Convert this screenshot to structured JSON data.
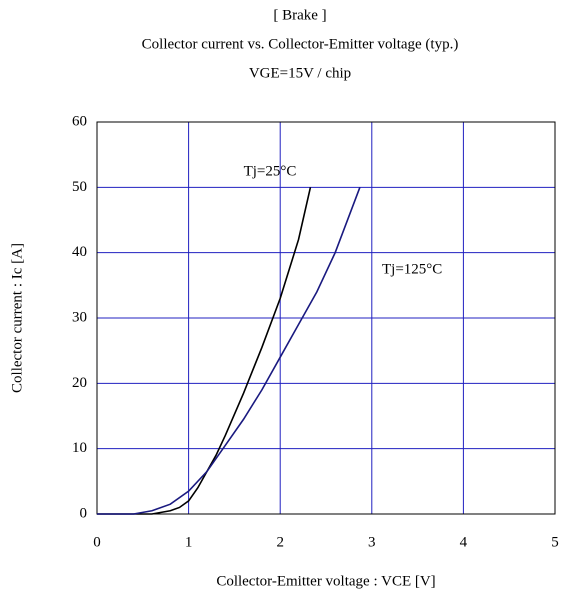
{
  "chart_data": {
    "type": "line",
    "title": "[ Brake ]",
    "subtitle": "Collector current vs. Collector-Emitter voltage (typ.)",
    "subtitle2": "VGE=15V / chip",
    "xlabel": "Collector-Emitter voltage : VCE [V]",
    "ylabel": "Collector current : Ic [A]",
    "xlim": [
      0,
      5
    ],
    "xticks": [
      0,
      1,
      2,
      3,
      4,
      5
    ],
    "ylim": [
      0,
      60
    ],
    "yticks": [
      0,
      10,
      20,
      30,
      40,
      50,
      60
    ],
    "grid": true,
    "grid_color": "#2020c0",
    "series": [
      {
        "name": "Tj=25°C",
        "color": "#000000",
        "x": [
          0,
          0.6,
          0.8,
          0.9,
          1.0,
          1.1,
          1.2,
          1.3,
          1.4,
          1.6,
          1.8,
          2.0,
          2.2,
          2.33
        ],
        "values": [
          0,
          0,
          0.5,
          1,
          2,
          4,
          6.5,
          9,
          12,
          18.5,
          25.5,
          33,
          42,
          50
        ]
      },
      {
        "name": "Tj=125°C",
        "color": "#1a1a80",
        "x": [
          0,
          0.4,
          0.6,
          0.8,
          1.0,
          1.2,
          1.4,
          1.6,
          1.8,
          2.0,
          2.2,
          2.4,
          2.6,
          2.87
        ],
        "values": [
          0,
          0,
          0.5,
          1.5,
          3.5,
          6.5,
          10.5,
          14.5,
          19,
          24,
          29,
          34,
          40,
          50
        ]
      }
    ]
  }
}
